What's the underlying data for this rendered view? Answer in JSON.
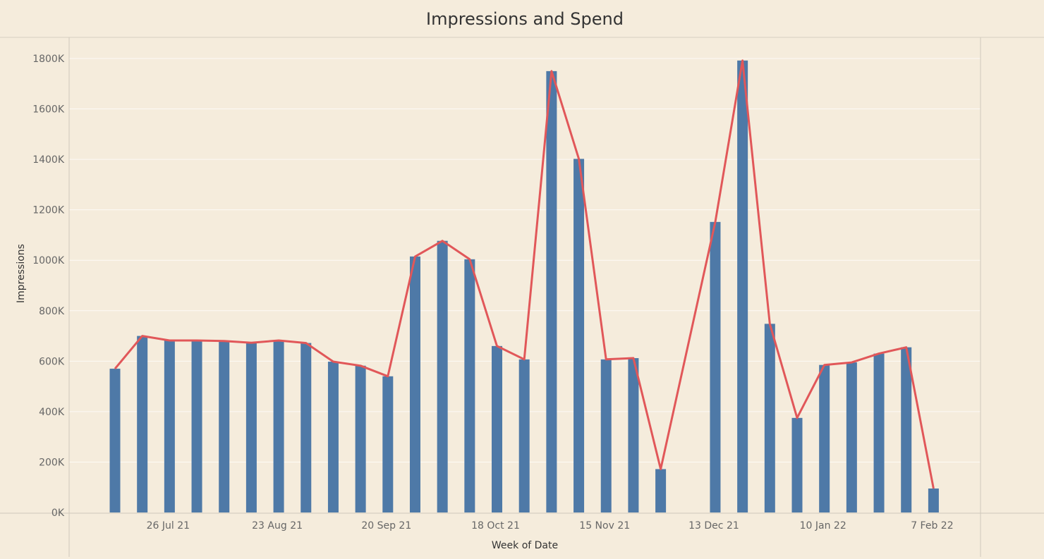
{
  "chart_data": {
    "type": "bar",
    "title": "Impressions and Spend",
    "xlabel": "Week of Date",
    "ylabel": "Impressions",
    "ylim": [
      0,
      1800000
    ],
    "yticks": [
      {
        "value": 0,
        "label": "0K"
      },
      {
        "value": 200000,
        "label": "200K"
      },
      {
        "value": 400000,
        "label": "400K"
      },
      {
        "value": 600000,
        "label": "600K"
      },
      {
        "value": 800000,
        "label": "800K"
      },
      {
        "value": 1000000,
        "label": "1000K"
      },
      {
        "value": 1200000,
        "label": "1200K"
      },
      {
        "value": 1400000,
        "label": "1400K"
      },
      {
        "value": 1600000,
        "label": "1600K"
      },
      {
        "value": 1800000,
        "label": "1800K"
      }
    ],
    "xticks": [
      {
        "date": "2021-07-26",
        "label": "26 Jul 21"
      },
      {
        "date": "2021-08-23",
        "label": "23 Aug 21"
      },
      {
        "date": "2021-09-20",
        "label": "20 Sep 21"
      },
      {
        "date": "2021-10-18",
        "label": "18 Oct 21"
      },
      {
        "date": "2021-11-15",
        "label": "15 Nov 21"
      },
      {
        "date": "2021-12-13",
        "label": "13 Dec 21"
      },
      {
        "date": "2022-01-10",
        "label": "10 Jan 22"
      },
      {
        "date": "2022-02-07",
        "label": "7 Feb 22"
      }
    ],
    "x": [
      "2021-07-12",
      "2021-07-19",
      "2021-07-26",
      "2021-08-02",
      "2021-08-09",
      "2021-08-16",
      "2021-08-23",
      "2021-08-30",
      "2021-09-06",
      "2021-09-13",
      "2021-09-20",
      "2021-09-27",
      "2021-10-04",
      "2021-10-11",
      "2021-10-18",
      "2021-10-25",
      "2021-11-01",
      "2021-11-08",
      "2021-11-15",
      "2021-11-22",
      "2021-11-29",
      "2021-12-13",
      "2021-12-20",
      "2021-12-27",
      "2022-01-03",
      "2022-01-10",
      "2022-01-17",
      "2022-01-24",
      "2022-01-31",
      "2022-02-07"
    ],
    "series": [
      {
        "type": "bar",
        "color": "#4e79a7",
        "values": [
          570000,
          700000,
          682000,
          682000,
          680000,
          673000,
          682000,
          672000,
          598000,
          582000,
          540000,
          1015000,
          1077000,
          1004000,
          660000,
          607000,
          1750000,
          1402000,
          607000,
          612000,
          172000,
          1152000,
          1792000,
          748000,
          375000,
          585000,
          595000,
          630000,
          655000,
          95000
        ]
      },
      {
        "type": "line",
        "color": "#e15759",
        "values": [
          570000,
          700000,
          682000,
          682000,
          680000,
          673000,
          682000,
          672000,
          598000,
          582000,
          540000,
          1015000,
          1077000,
          1004000,
          660000,
          607000,
          1750000,
          1402000,
          607000,
          612000,
          172000,
          1152000,
          1792000,
          748000,
          375000,
          585000,
          595000,
          630000,
          655000,
          95000
        ]
      }
    ],
    "grid": true,
    "legend": "none"
  }
}
